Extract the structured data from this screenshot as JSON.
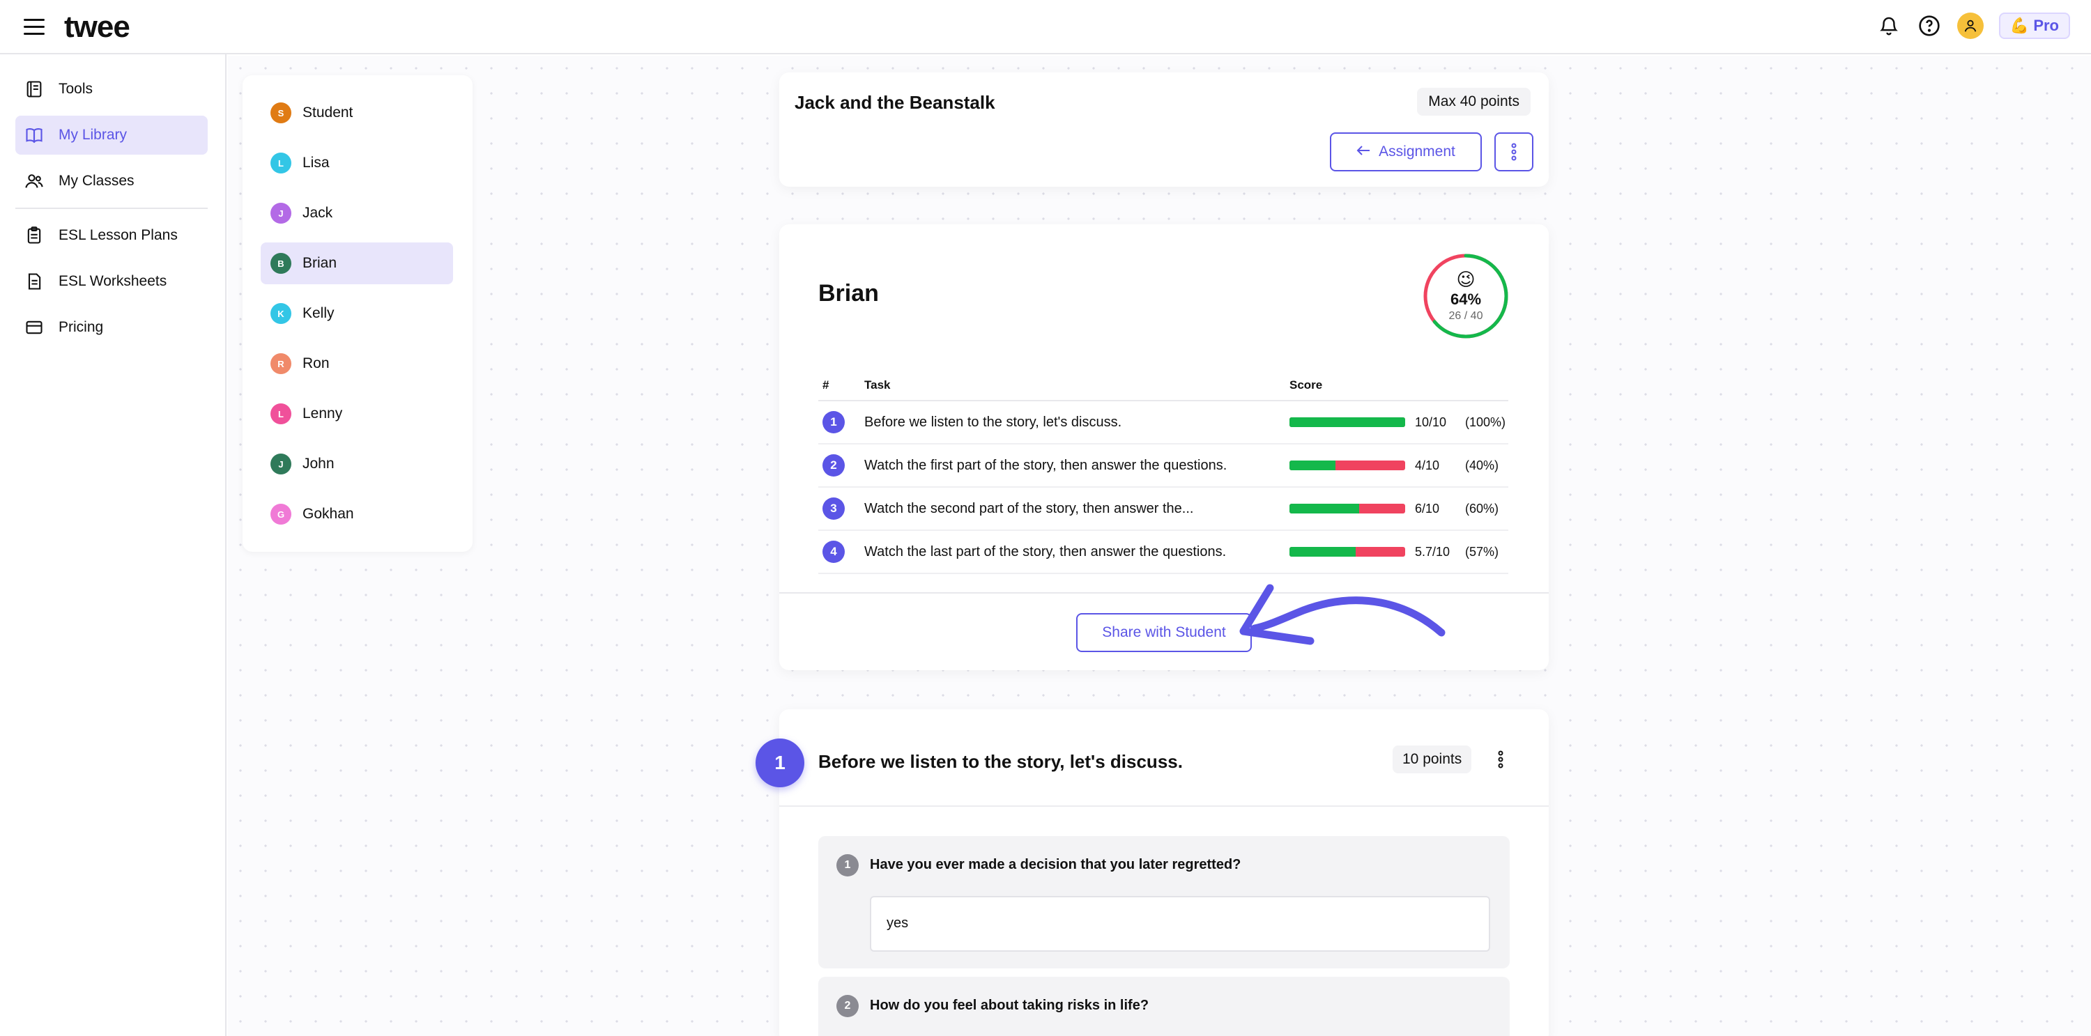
{
  "app": {
    "logo": "twee",
    "pro_label": "Pro"
  },
  "sidebar": {
    "items": [
      {
        "label": "Tools",
        "icon": "book-open-icon"
      },
      {
        "label": "My Library",
        "icon": "library-icon",
        "active": true
      },
      {
        "label": "My Classes",
        "icon": "users-icon"
      },
      {
        "label": "ESL Lesson Plans",
        "icon": "clipboard-icon"
      },
      {
        "label": "ESL Worksheets",
        "icon": "worksheet-icon"
      },
      {
        "label": "Pricing",
        "icon": "credit-card-icon"
      }
    ]
  },
  "students": [
    {
      "initial": "S",
      "name": "Student",
      "color": "#e07b14"
    },
    {
      "initial": "L",
      "name": "Lisa",
      "color": "#33c6e6"
    },
    {
      "initial": "J",
      "name": "Jack",
      "color": "#b36ae6"
    },
    {
      "initial": "B",
      "name": "Brian",
      "color": "#2f7a5a",
      "active": true
    },
    {
      "initial": "K",
      "name": "Kelly",
      "color": "#33c6e6"
    },
    {
      "initial": "R",
      "name": "Ron",
      "color": "#f08a6a"
    },
    {
      "initial": "L",
      "name": "Lenny",
      "color": "#f0509a"
    },
    {
      "initial": "J",
      "name": "John",
      "color": "#2f7a5a"
    },
    {
      "initial": "G",
      "name": "Gokhan",
      "color": "#f07ad6"
    }
  ],
  "assignment": {
    "title": "Jack and the Beanstalk",
    "max_points": "Max 40 points",
    "back_label": "Assignment"
  },
  "report": {
    "student_name": "Brian",
    "emoji": "😉",
    "percent": "64%",
    "fraction": "26 / 40",
    "score_fraction": 0.64,
    "headers": {
      "num": "#",
      "task": "Task",
      "score": "Score"
    },
    "rows": [
      {
        "num": "1",
        "task": "Before we listen to the story, let's discuss.",
        "points": "10/10",
        "pct": "(100%)",
        "fraction": 1.0
      },
      {
        "num": "2",
        "task": "Watch the first part of the story, then answer the questions.",
        "points": "4/10",
        "pct": "(40%)",
        "fraction": 0.4
      },
      {
        "num": "3",
        "task": "Watch the second part of the story, then answer the...",
        "points": "6/10",
        "pct": "(60%)",
        "fraction": 0.6
      },
      {
        "num": "4",
        "task": "Watch the last part of the story, then answer the questions.",
        "points": "5.7/10",
        "pct": "(57%)",
        "fraction": 0.57
      }
    ],
    "share_label": "Share with Student"
  },
  "task": {
    "number": "1",
    "title": "Before we listen to the story, let's discuss.",
    "points": "10 points",
    "questions": [
      {
        "num": "1",
        "text": "Have you ever made a decision that you later regretted?",
        "answer": "yes"
      },
      {
        "num": "2",
        "text": "How do you feel about taking risks in life?"
      }
    ]
  },
  "colors": {
    "accent": "#5b55e6",
    "good": "#14b84b",
    "bad": "#f0435f"
  }
}
